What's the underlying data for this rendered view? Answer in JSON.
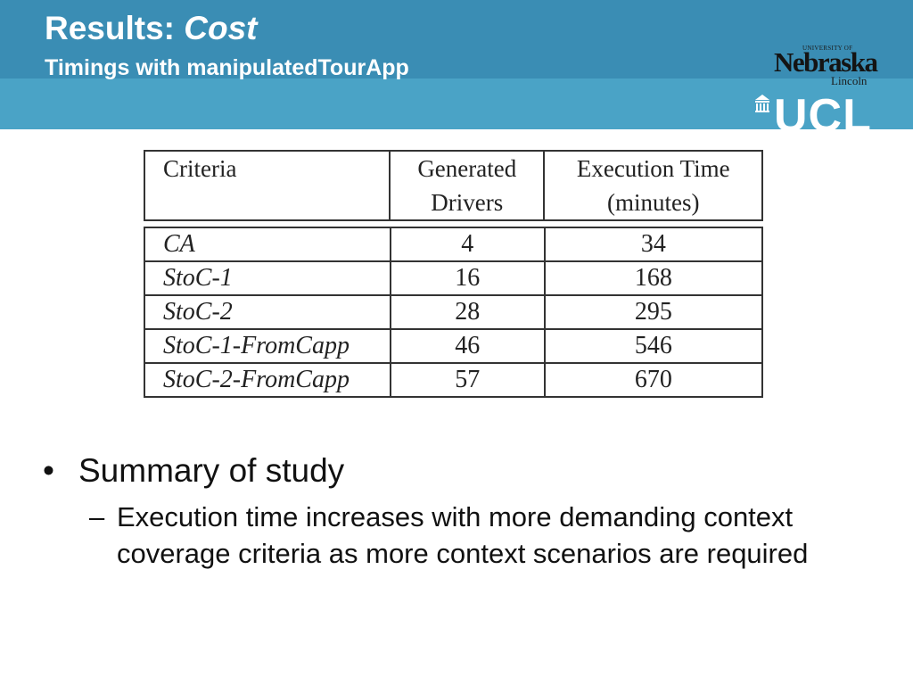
{
  "header": {
    "title_prefix": "Results: ",
    "title_emphasis": "Cost",
    "subtitle": "Timings with manipulatedTourApp"
  },
  "logos": {
    "nebraska_small": "UNIVERSITY OF",
    "nebraska_main": "Nebraska",
    "nebraska_city": "Lincoln",
    "ucl": "UCL"
  },
  "table": {
    "headers": [
      [
        "Criteria"
      ],
      [
        "Generated",
        "Drivers"
      ],
      [
        "Execution Time",
        "(minutes)"
      ]
    ],
    "rows": [
      {
        "criteria": "CA",
        "drivers": "4",
        "time": "34"
      },
      {
        "criteria": "StoC-1",
        "drivers": "16",
        "time": "168"
      },
      {
        "criteria": "StoC-2",
        "drivers": "28",
        "time": "295"
      },
      {
        "criteria": "StoC-1-FromCapp",
        "drivers": "46",
        "time": "546"
      },
      {
        "criteria": "StoC-2-FromCapp",
        "drivers": "57",
        "time": "670"
      }
    ]
  },
  "bullets": {
    "main_marker": "•",
    "main": "Summary of study",
    "sub_marker": "–",
    "sub": "Execution time increases with more demanding context coverage criteria as more context scenarios are required"
  },
  "colors": {
    "header_dark": "#3a8db4",
    "header_light": "#4aa3c6",
    "text": "#111111"
  }
}
